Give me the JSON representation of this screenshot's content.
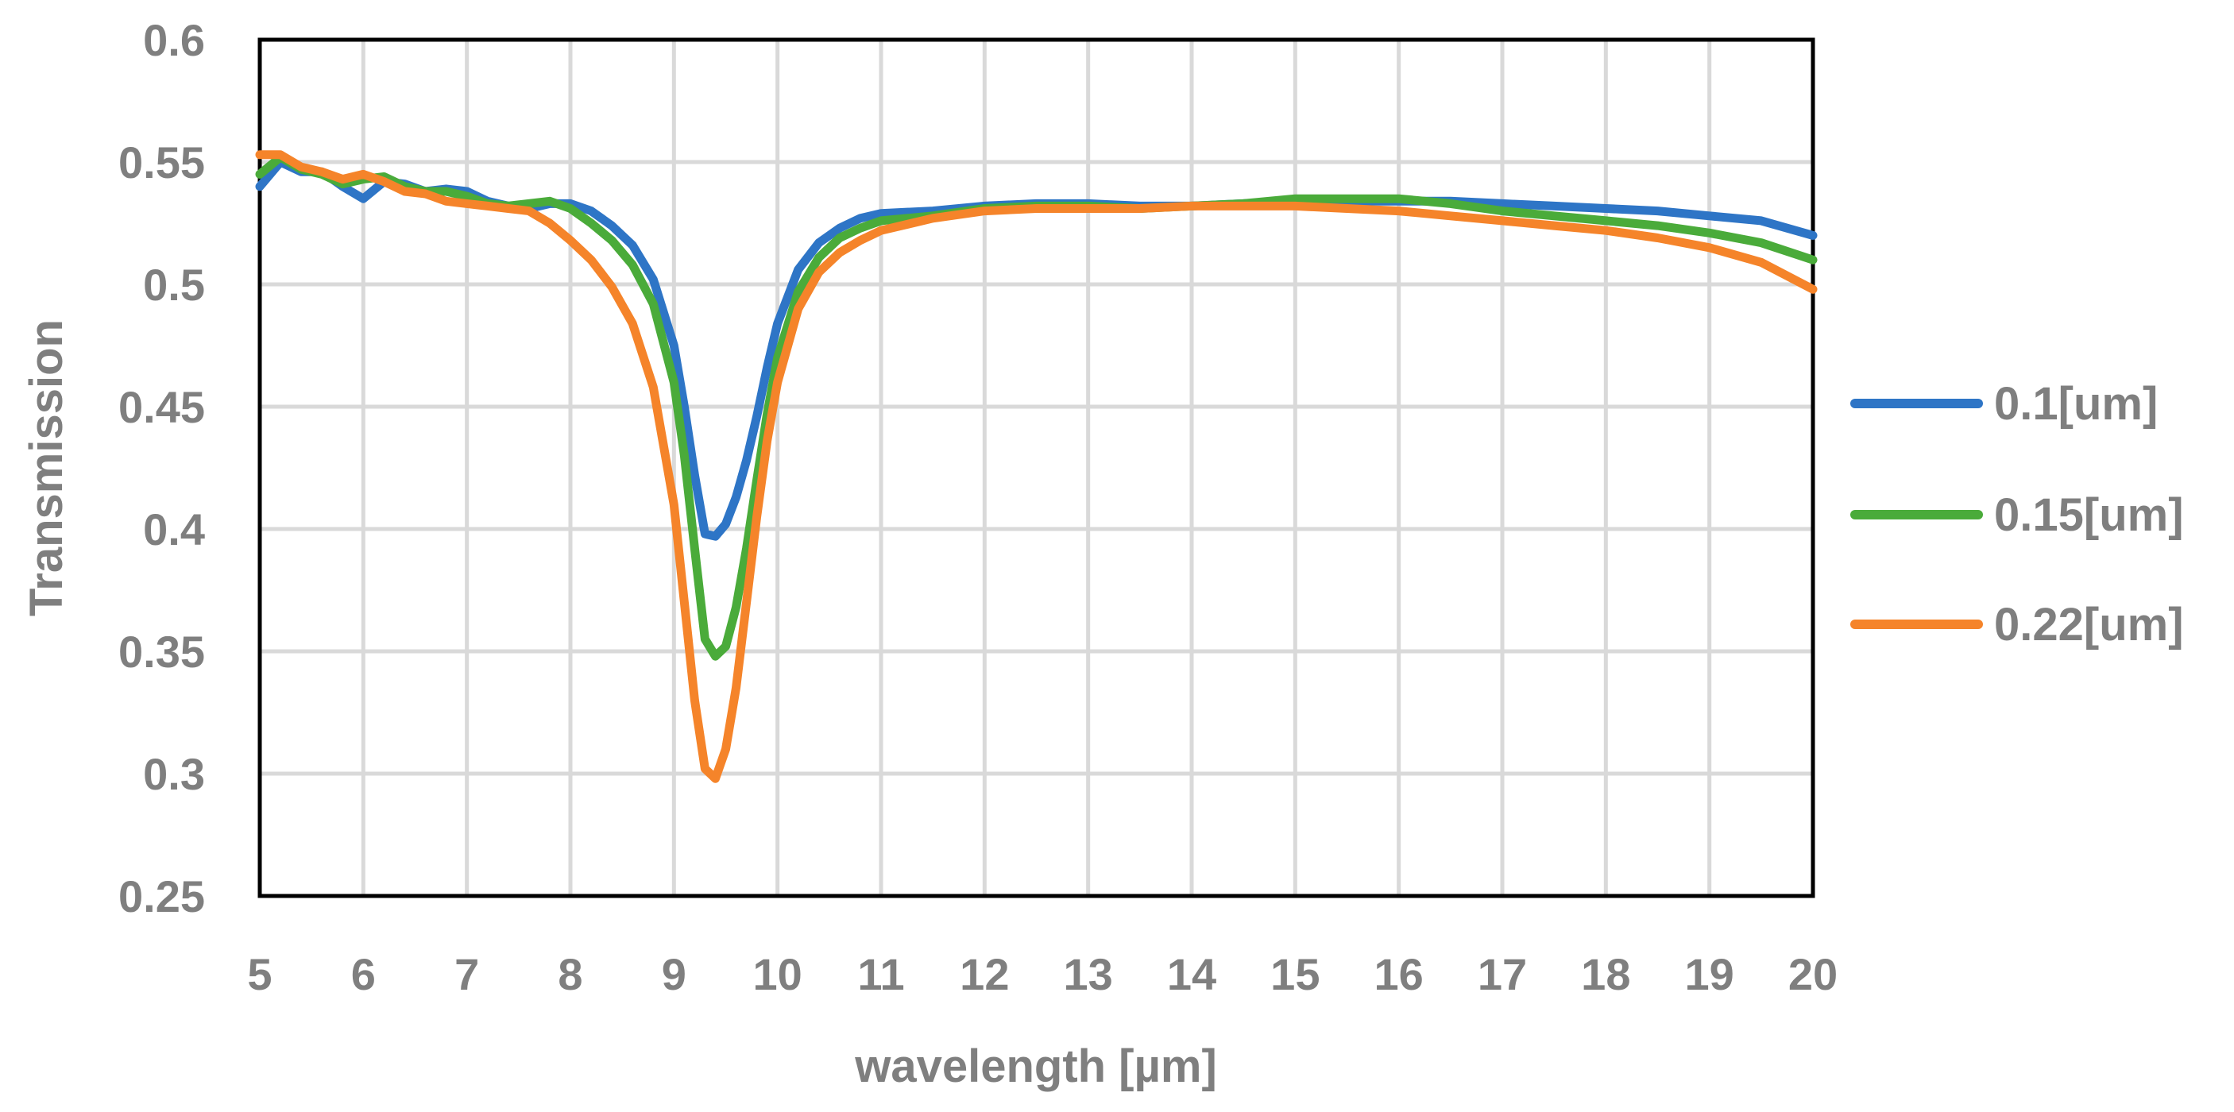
{
  "chart_data": {
    "type": "line",
    "title": "",
    "xlabel": "wavelength [µm]",
    "ylabel": "Transmission",
    "xlim": [
      5,
      20
    ],
    "ylim": [
      0.25,
      0.6
    ],
    "grid": true,
    "legend_position": "right",
    "x_ticks": [
      "5",
      "6",
      "7",
      "8",
      "9",
      "10",
      "11",
      "12",
      "13",
      "14",
      "15",
      "16",
      "17",
      "18",
      "19",
      "20"
    ],
    "y_ticks": [
      "0.25",
      "0.3",
      "0.35",
      "0.4",
      "0.45",
      "0.5",
      "0.55",
      "0.6"
    ],
    "x": [
      5.0,
      5.2,
      5.4,
      5.6,
      5.8,
      6.0,
      6.2,
      6.4,
      6.6,
      6.8,
      7.0,
      7.2,
      7.4,
      7.6,
      7.8,
      8.0,
      8.2,
      8.4,
      8.6,
      8.8,
      9.0,
      9.1,
      9.2,
      9.3,
      9.4,
      9.5,
      9.6,
      9.7,
      9.8,
      9.9,
      10.0,
      10.2,
      10.4,
      10.6,
      10.8,
      11.0,
      11.5,
      12.0,
      12.5,
      13.0,
      13.5,
      14.0,
      14.5,
      15.0,
      15.5,
      16.0,
      16.5,
      17.0,
      17.5,
      18.0,
      18.5,
      19.0,
      19.5,
      20.0
    ],
    "series": [
      {
        "name": "0.1[um]",
        "color": "#2e75c6",
        "values": [
          0.54,
          0.55,
          0.546,
          0.546,
          0.54,
          0.535,
          0.542,
          0.541,
          0.538,
          0.539,
          0.538,
          0.534,
          0.532,
          0.531,
          0.533,
          0.533,
          0.53,
          0.524,
          0.516,
          0.502,
          0.475,
          0.45,
          0.422,
          0.398,
          0.397,
          0.402,
          0.413,
          0.428,
          0.446,
          0.466,
          0.484,
          0.506,
          0.517,
          0.523,
          0.527,
          0.529,
          0.53,
          0.532,
          0.533,
          0.533,
          0.532,
          0.532,
          0.533,
          0.534,
          0.534,
          0.534,
          0.534,
          0.533,
          0.532,
          0.531,
          0.53,
          0.528,
          0.526,
          0.52
        ]
      },
      {
        "name": "0.15[um]",
        "color": "#4aab3a",
        "values": [
          0.545,
          0.552,
          0.547,
          0.545,
          0.541,
          0.543,
          0.544,
          0.54,
          0.538,
          0.538,
          0.536,
          0.533,
          0.532,
          0.533,
          0.534,
          0.531,
          0.525,
          0.518,
          0.508,
          0.492,
          0.46,
          0.43,
          0.392,
          0.355,
          0.348,
          0.352,
          0.368,
          0.392,
          0.42,
          0.447,
          0.47,
          0.497,
          0.511,
          0.519,
          0.523,
          0.526,
          0.528,
          0.531,
          0.532,
          0.532,
          0.531,
          0.532,
          0.533,
          0.535,
          0.535,
          0.535,
          0.533,
          0.53,
          0.528,
          0.526,
          0.524,
          0.521,
          0.517,
          0.51
        ]
      },
      {
        "name": "0.22[um]",
        "color": "#f5842a",
        "values": [
          0.553,
          0.553,
          0.548,
          0.546,
          0.543,
          0.545,
          0.542,
          0.538,
          0.537,
          0.534,
          0.533,
          0.532,
          0.531,
          0.53,
          0.525,
          0.518,
          0.51,
          0.499,
          0.484,
          0.458,
          0.41,
          0.37,
          0.33,
          0.302,
          0.298,
          0.31,
          0.335,
          0.37,
          0.405,
          0.436,
          0.46,
          0.49,
          0.505,
          0.513,
          0.518,
          0.522,
          0.527,
          0.53,
          0.531,
          0.531,
          0.531,
          0.532,
          0.532,
          0.532,
          0.531,
          0.53,
          0.528,
          0.526,
          0.524,
          0.522,
          0.519,
          0.515,
          0.509,
          0.498
        ]
      }
    ]
  }
}
